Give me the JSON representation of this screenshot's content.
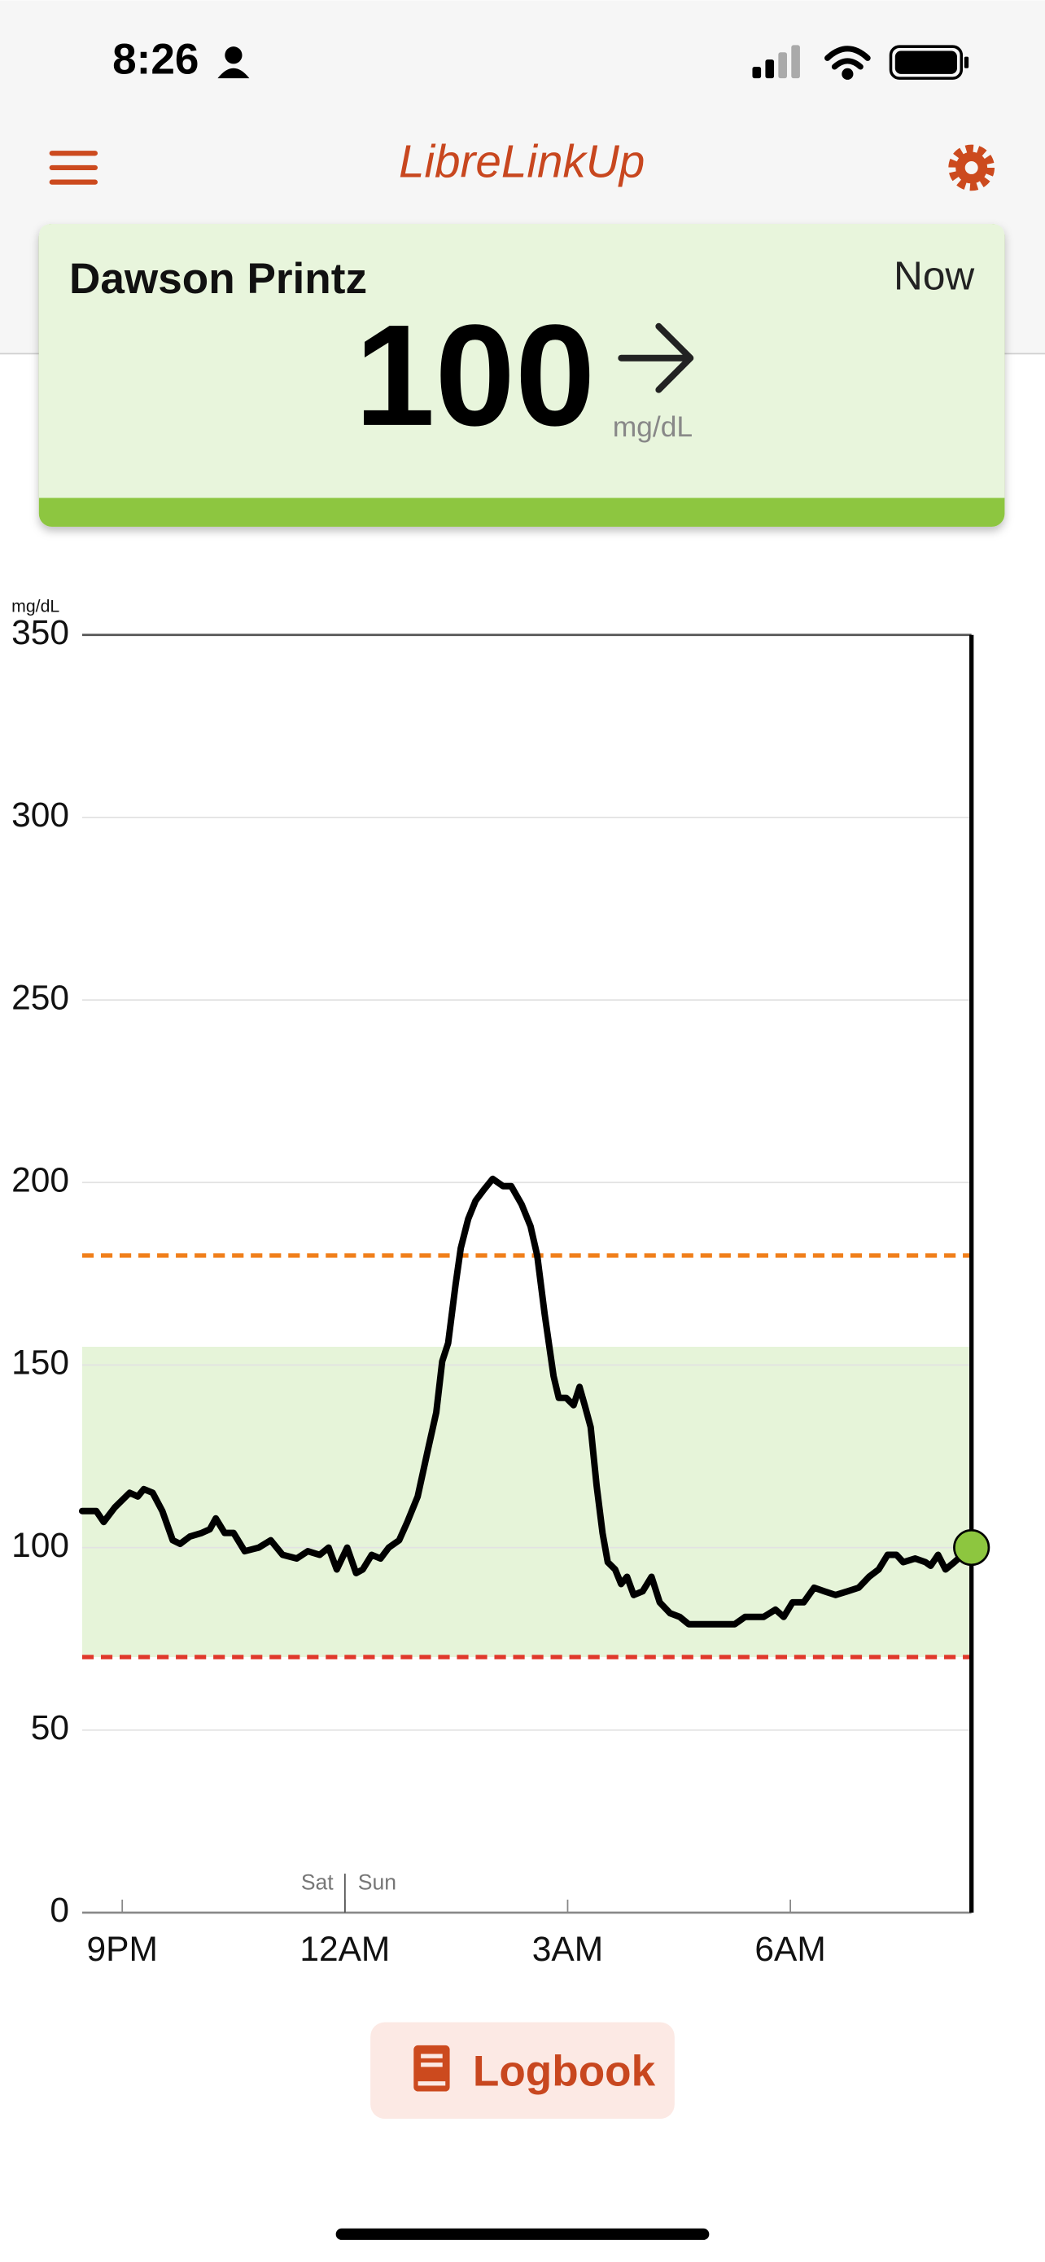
{
  "status_bar": {
    "time": "8:26"
  },
  "header": {
    "title": "LibreLinkUp"
  },
  "card": {
    "name": "Dawson Printz",
    "time": "Now",
    "value": 100,
    "unit": "mg/dL"
  },
  "chart_data": {
    "type": "line",
    "y_label": "mg/dL",
    "x": [
      20.46,
      20.65,
      20.75,
      20.9,
      21.1,
      21.21,
      21.29,
      21.41,
      21.54,
      21.68,
      21.78,
      21.91,
      22.07,
      22.18,
      22.26,
      22.38,
      22.5,
      22.65,
      22.84,
      23,
      23.16,
      23.35,
      23.5,
      23.66,
      23.78,
      23.89,
      24.03,
      24.15,
      24.24,
      24.36,
      24.48,
      24.59,
      24.73,
      24.84,
      24.98,
      25.12,
      25.23,
      25.31,
      25.39,
      25.49,
      25.56,
      25.66,
      25.76,
      25.87,
      25.99,
      26.13,
      26.24,
      26.38,
      26.5,
      26.59,
      26.69,
      26.81,
      26.88,
      26.98,
      27.08,
      27.16,
      27.23,
      27.31,
      27.39,
      27.47,
      27.54,
      27.64,
      27.72,
      27.8,
      27.89,
      28.01,
      28.13,
      28.24,
      28.38,
      28.51,
      28.63,
      28.83,
      28.92,
      29.1,
      29.25,
      29.39,
      29.5,
      29.64,
      29.8,
      29.91,
      30.03,
      30.18,
      30.32,
      30.46,
      30.61,
      30.77,
      30.92,
      31.06,
      31.19,
      31.31,
      31.43,
      31.52,
      31.68,
      31.82,
      31.89,
      31.99,
      32.09,
      32.21,
      32.32,
      32.44
    ],
    "values": [
      110,
      110,
      107,
      111,
      115,
      114,
      116,
      115,
      110,
      102,
      101,
      103,
      104,
      105,
      108,
      104,
      104,
      99,
      100,
      102,
      98,
      97,
      99,
      98,
      100,
      94,
      100,
      93,
      94,
      98,
      97,
      100,
      102,
      107,
      114,
      127,
      137,
      151,
      156,
      172,
      182,
      190,
      195,
      198,
      201,
      199,
      199,
      194,
      188,
      180,
      164,
      147,
      141,
      141,
      139,
      144,
      139,
      133,
      117,
      104,
      96,
      94,
      90,
      92,
      87,
      88,
      92,
      85,
      82,
      81,
      79,
      79,
      79,
      79,
      79,
      81,
      81,
      81,
      83,
      81,
      85,
      85,
      89,
      88,
      87,
      88,
      89,
      92,
      94,
      98,
      98,
      96,
      97,
      96,
      95,
      98,
      94,
      96,
      98,
      100
    ],
    "color": "#000000",
    "xlim": [
      20.46,
      32.44
    ],
    "xticks": [
      {
        "value": 21,
        "label": "9PM"
      },
      {
        "value": 24,
        "label": "12AM"
      },
      {
        "value": 27,
        "label": "3AM"
      },
      {
        "value": 30,
        "label": "6AM"
      }
    ],
    "ylim": [
      0,
      350
    ],
    "yticks": [
      0,
      50,
      100,
      150,
      200,
      250,
      300,
      350
    ],
    "grid": true,
    "day_divider": {
      "x": 24,
      "before": "Sat",
      "after": "Sun"
    },
    "target_range": [
      70,
      155
    ],
    "target_color": "#e6f4d9",
    "high_threshold": 180,
    "high_color": "#f07f1a",
    "low_threshold": 70,
    "low_color": "#e0382b",
    "current": 100,
    "current_color": "#8dc63f"
  },
  "button": {
    "label": "Logbook"
  }
}
